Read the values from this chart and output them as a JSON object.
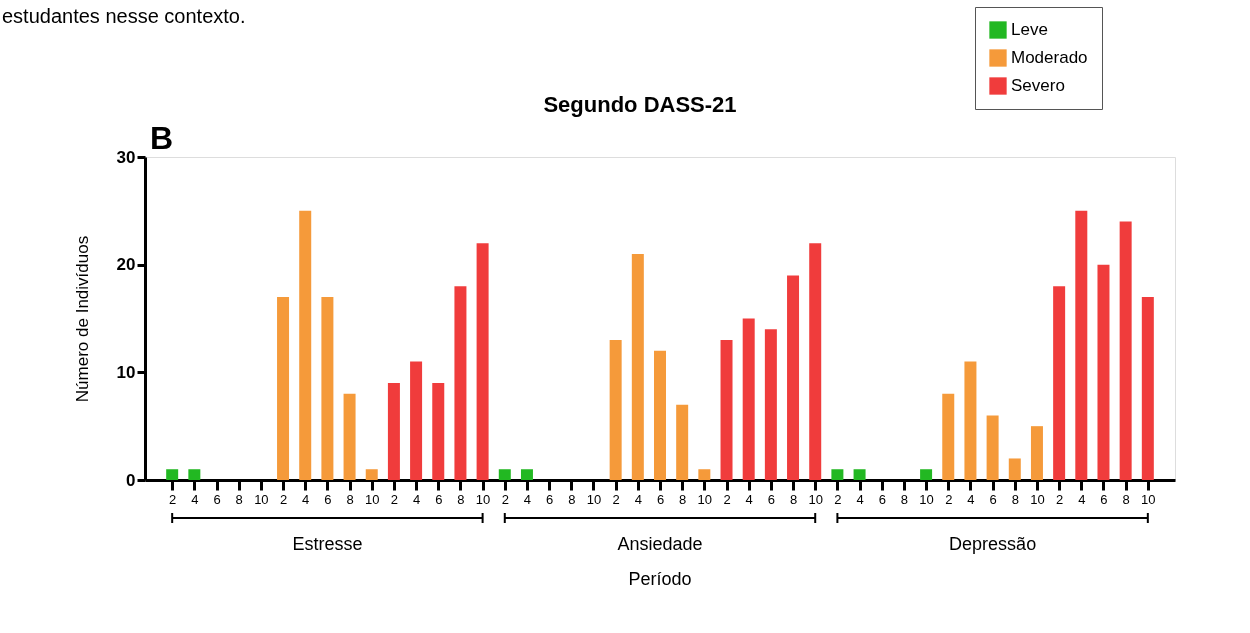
{
  "chart_data": {
    "type": "bar",
    "title": "Segundo DASS-21",
    "xlabel": "Período",
    "ylabel": "Número de Indivíduos",
    "categories": [
      "2",
      "4",
      "6",
      "8",
      "10",
      "2",
      "4",
      "6",
      "8",
      "10",
      "2",
      "4",
      "6",
      "8",
      "10",
      "2",
      "4",
      "6",
      "8",
      "10",
      "2",
      "4",
      "6",
      "8",
      "10",
      "2",
      "4",
      "6",
      "8",
      "10",
      "2",
      "4",
      "6",
      "8",
      "10",
      "2",
      "4",
      "6",
      "8",
      "10",
      "2",
      "4",
      "6",
      "8",
      "10"
    ],
    "series": [
      {
        "name": "Leve",
        "color": "#22b822",
        "values": [
          1,
          1,
          null,
          null,
          null,
          null,
          null,
          null,
          null,
          null,
          null,
          null,
          null,
          null,
          null,
          1,
          1,
          null,
          null,
          null,
          null,
          null,
          null,
          null,
          null,
          null,
          null,
          null,
          null,
          null,
          1,
          1,
          null,
          null,
          1,
          null,
          null,
          null,
          null,
          null,
          null,
          null,
          null,
          null,
          null
        ]
      },
      {
        "name": "Moderado",
        "color": "#f59a3a",
        "values": [
          null,
          null,
          null,
          null,
          null,
          17,
          25,
          17,
          8,
          1,
          null,
          null,
          null,
          null,
          null,
          null,
          null,
          null,
          null,
          null,
          13,
          21,
          12,
          7,
          1,
          null,
          null,
          null,
          null,
          null,
          null,
          null,
          null,
          null,
          null,
          8,
          11,
          6,
          2,
          5,
          null,
          null,
          null,
          null,
          null
        ]
      },
      {
        "name": "Severo",
        "color": "#f03c3c",
        "values": [
          null,
          null,
          null,
          null,
          null,
          null,
          null,
          null,
          null,
          null,
          9,
          11,
          9,
          18,
          22,
          null,
          null,
          null,
          null,
          null,
          null,
          null,
          null,
          null,
          null,
          13,
          15,
          14,
          19,
          22,
          null,
          null,
          null,
          null,
          null,
          null,
          null,
          null,
          null,
          null,
          18,
          25,
          20,
          24,
          17
        ]
      }
    ],
    "ylim": [
      0,
      30
    ],
    "yticks": [
      0,
      10,
      20,
      30
    ],
    "grid": false,
    "legend": "top right",
    "annotations": [
      "estudantes nesse contexto.",
      "B",
      "Estresse",
      "Ansiedade",
      "Depressão"
    ]
  }
}
